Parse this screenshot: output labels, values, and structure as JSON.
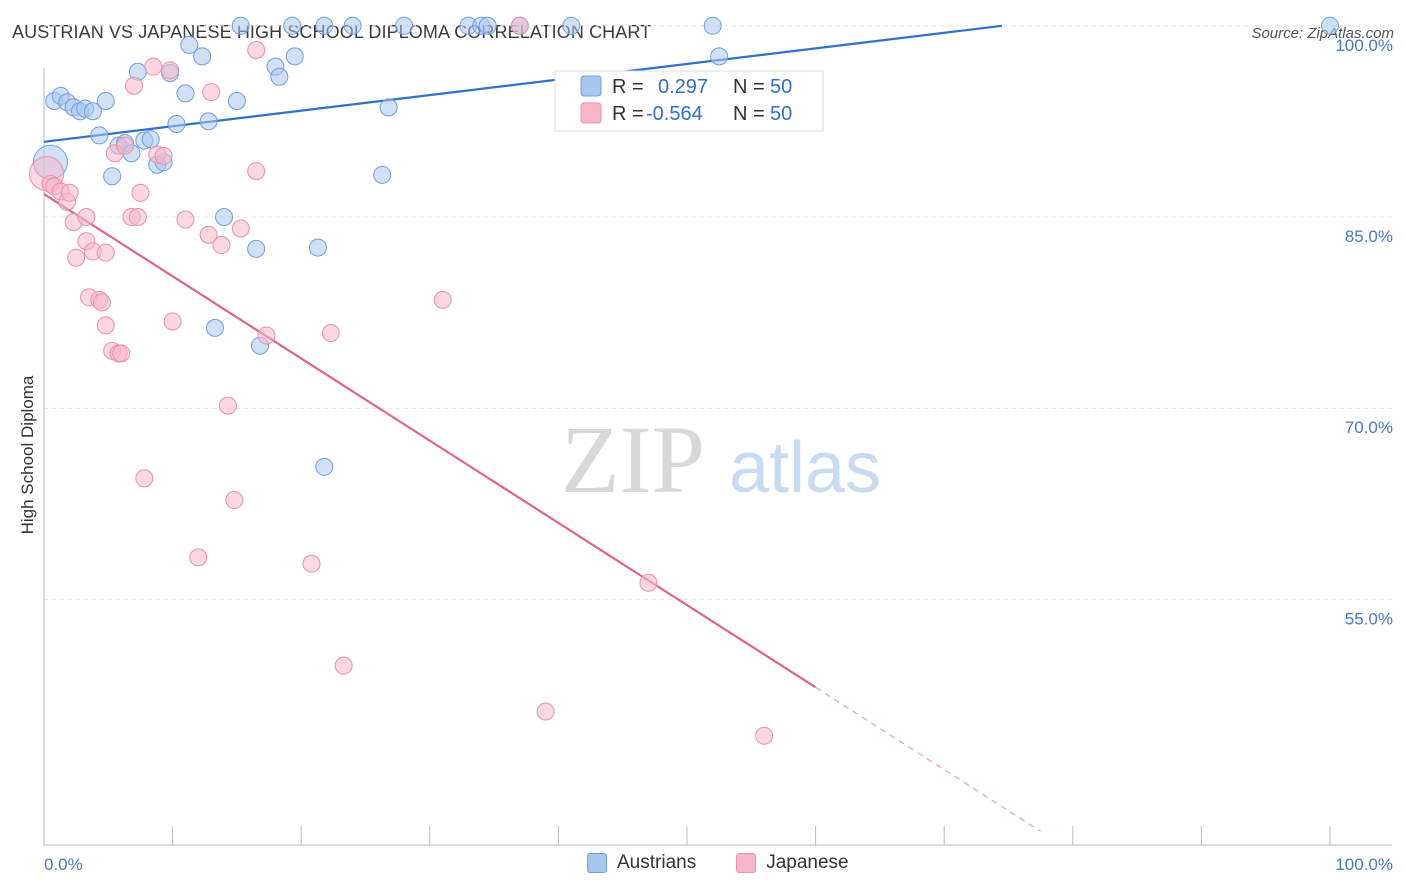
{
  "title": "AUSTRIAN VS JAPANESE HIGH SCHOOL DIPLOMA CORRELATION CHART",
  "source": "Source: ZipAtlas.com",
  "watermark": {
    "zip": "ZIP",
    "atlas": "atlas"
  },
  "stats": [
    {
      "r_label": "R =",
      "r_value": "0.297",
      "n_label": "N =",
      "n_value": "50"
    },
    {
      "r_label": "R =",
      "r_value": "-0.564",
      "n_label": "N =",
      "n_value": "50"
    }
  ],
  "legend": {
    "austrians": "Austrians",
    "japanese": "Japanese"
  },
  "colors": {
    "austrians_fill": "#a9c6ef",
    "austrians_stroke": "#6f9fe0",
    "austrians_line": "#2f6fd0",
    "japanese_fill": "#f7b6c8",
    "japanese_stroke": "#ec8fac",
    "japanese_line": "#e0628f"
  },
  "chart_data": {
    "type": "scatter",
    "title": "AUSTRIAN VS JAPANESE HIGH SCHOOL DIPLOMA CORRELATION CHART",
    "xlabel": "",
    "ylabel": "High School Diploma",
    "xlim": [
      0,
      100
    ],
    "ylim": [
      36,
      101
    ],
    "x_tick_labels": [
      "0.0%",
      "100.0%"
    ],
    "y_ticks": [
      55,
      70,
      85,
      100
    ],
    "y_tick_labels": [
      "55.0%",
      "70.0%",
      "85.0%",
      "100.0%"
    ],
    "series": [
      {
        "name": "Austrians",
        "points": [
          [
            0.5,
            89.3
          ],
          [
            0.8,
            94.1
          ],
          [
            1.3,
            94.5
          ],
          [
            1.8,
            94.0
          ],
          [
            2.3,
            93.6
          ],
          [
            2.8,
            93.3
          ],
          [
            3.2,
            93.5
          ],
          [
            3.8,
            93.3
          ],
          [
            4.3,
            91.4
          ],
          [
            4.8,
            94.1
          ],
          [
            5.3,
            88.2
          ],
          [
            5.8,
            90.6
          ],
          [
            6.3,
            90.8
          ],
          [
            6.8,
            90.0
          ],
          [
            7.3,
            96.4
          ],
          [
            7.8,
            91.0
          ],
          [
            8.3,
            91.1
          ],
          [
            8.8,
            89.1
          ],
          [
            9.3,
            89.3
          ],
          [
            9.8,
            96.3
          ],
          [
            10.3,
            92.3
          ],
          [
            11.0,
            94.7
          ],
          [
            11.3,
            98.5
          ],
          [
            12.3,
            97.6
          ],
          [
            12.8,
            92.5
          ],
          [
            14.0,
            85.0
          ],
          [
            15.0,
            94.1
          ],
          [
            15.3,
            100.0
          ],
          [
            16.5,
            82.5
          ],
          [
            18.0,
            96.8
          ],
          [
            18.3,
            96.0
          ],
          [
            19.3,
            100.0
          ],
          [
            19.5,
            97.6
          ],
          [
            21.3,
            82.6
          ],
          [
            21.8,
            100.0
          ],
          [
            24.0,
            100.0
          ],
          [
            26.8,
            93.6
          ],
          [
            28.0,
            100.0
          ],
          [
            33.0,
            100.0
          ],
          [
            34.0,
            100.0
          ],
          [
            34.5,
            100.0
          ],
          [
            37.0,
            100.0
          ],
          [
            41.0,
            100.0
          ],
          [
            52.0,
            100.0
          ],
          [
            52.5,
            97.6
          ],
          [
            100.0,
            100.0
          ],
          [
            13.3,
            76.3
          ],
          [
            16.8,
            74.9
          ],
          [
            21.8,
            65.4
          ],
          [
            26.3,
            88.3
          ]
        ]
      },
      {
        "name": "Japanese",
        "points": [
          [
            0.2,
            88.4
          ],
          [
            0.5,
            87.6
          ],
          [
            0.8,
            87.4
          ],
          [
            1.3,
            87.0
          ],
          [
            1.8,
            86.2
          ],
          [
            2.0,
            86.9
          ],
          [
            2.3,
            84.6
          ],
          [
            2.5,
            81.8
          ],
          [
            3.3,
            83.1
          ],
          [
            3.3,
            85.0
          ],
          [
            3.5,
            78.7
          ],
          [
            3.8,
            82.3
          ],
          [
            4.3,
            78.5
          ],
          [
            4.5,
            78.3
          ],
          [
            4.8,
            82.2
          ],
          [
            4.8,
            76.5
          ],
          [
            5.3,
            74.5
          ],
          [
            5.5,
            90.0
          ],
          [
            5.8,
            74.3
          ],
          [
            6.0,
            74.3
          ],
          [
            6.3,
            90.6
          ],
          [
            6.8,
            85.0
          ],
          [
            7.0,
            95.3
          ],
          [
            7.3,
            85.0
          ],
          [
            7.5,
            86.9
          ],
          [
            7.8,
            64.5
          ],
          [
            8.5,
            96.8
          ],
          [
            8.8,
            89.9
          ],
          [
            9.3,
            89.8
          ],
          [
            9.8,
            96.5
          ],
          [
            10.0,
            76.8
          ],
          [
            11.0,
            84.8
          ],
          [
            12.0,
            58.3
          ],
          [
            12.8,
            83.6
          ],
          [
            13.8,
            82.8
          ],
          [
            14.3,
            70.2
          ],
          [
            14.8,
            62.8
          ],
          [
            15.3,
            84.1
          ],
          [
            16.5,
            98.1
          ],
          [
            16.5,
            88.6
          ],
          [
            17.3,
            75.7
          ],
          [
            20.8,
            57.8
          ],
          [
            22.3,
            75.9
          ],
          [
            23.3,
            49.8
          ],
          [
            31.0,
            78.5
          ],
          [
            39.0,
            46.2
          ],
          [
            47.0,
            56.3
          ],
          [
            56.0,
            44.3
          ],
          [
            37.0,
            100.0
          ],
          [
            13.0,
            94.8
          ]
        ]
      }
    ],
    "trend_lines": [
      {
        "name": "Austrians",
        "x1": 0,
        "y1": 90.9,
        "x2": 74.5,
        "y2": 100.0
      },
      {
        "name": "Japanese",
        "x1": 0,
        "y1": 86.8,
        "x2": 60.0,
        "y2": 48.1,
        "dashed_to_x": 77.5,
        "dashed_to_y": 36.8
      }
    ]
  }
}
